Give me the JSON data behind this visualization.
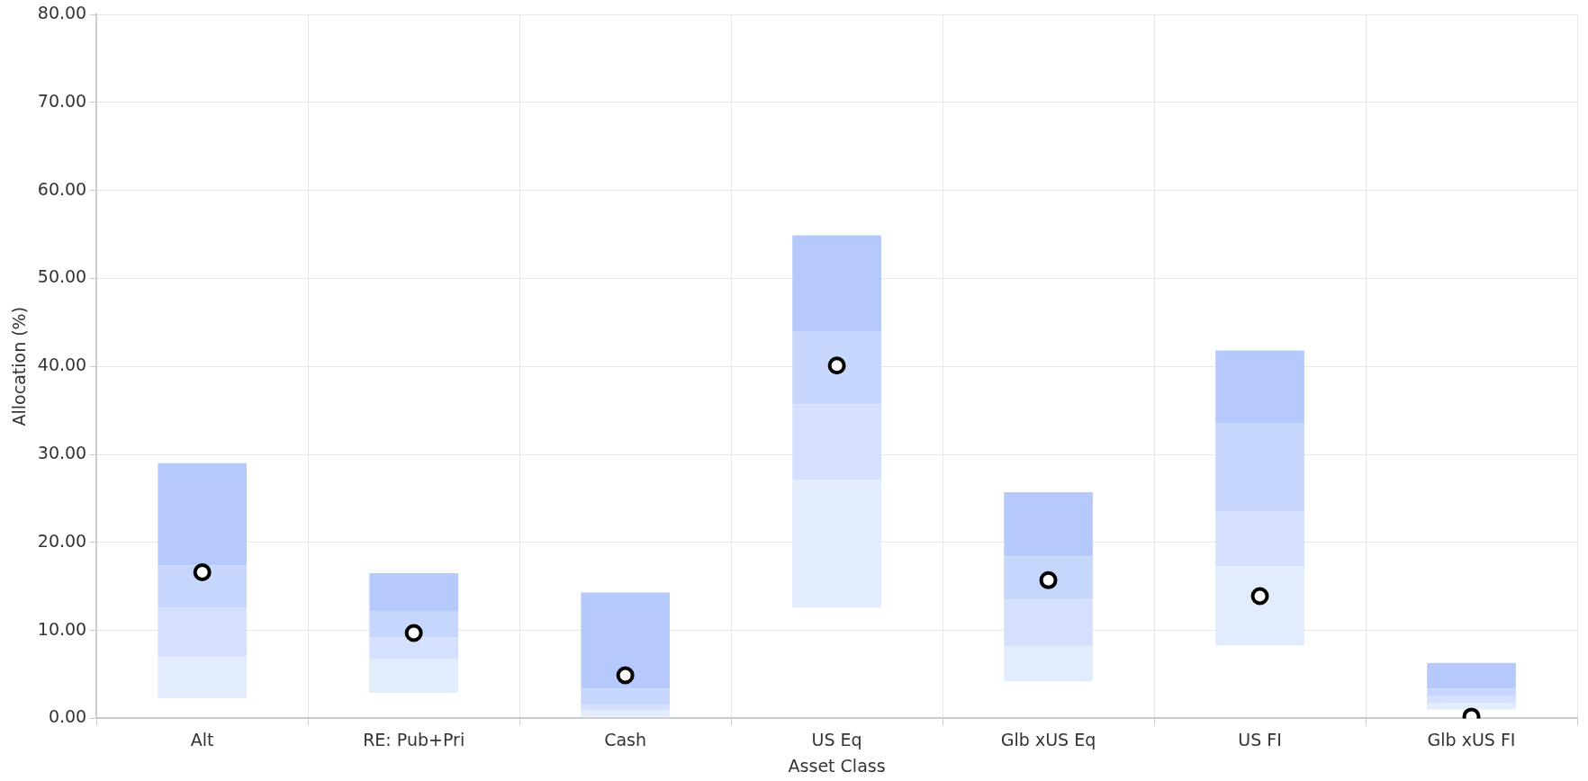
{
  "chart_data": {
    "type": "bar",
    "xlabel": "Asset Class",
    "ylabel": "Allocation (%)",
    "categories": [
      "Alt",
      "RE: Pub+Pri",
      "Cash",
      "US Eq",
      "Glb xUS Eq",
      "US FI",
      "Glb xUS FI"
    ],
    "series": [
      {
        "color": "#e3ecfd",
        "base": [
          2.3,
          2.9,
          0.2,
          12.6,
          4.2,
          8.3,
          1.0
        ],
        "values": [
          4.8,
          3.9,
          0.7,
          14.5,
          4.0,
          9.0,
          0.7
        ]
      },
      {
        "color": "#d4e0fd",
        "base": [
          7.1,
          6.8,
          0.9,
          27.1,
          8.2,
          17.3,
          1.7
        ],
        "values": [
          5.5,
          2.4,
          0.6,
          8.6,
          5.3,
          6.2,
          0.9
        ]
      },
      {
        "color": "#c6d6fc",
        "base": [
          12.6,
          9.2,
          1.5,
          35.7,
          13.5,
          23.5,
          2.6
        ],
        "values": [
          4.8,
          3.0,
          1.9,
          8.3,
          4.9,
          10.0,
          0.8
        ]
      },
      {
        "color": "#b5c9fc",
        "base": [
          17.4,
          12.2,
          3.4,
          44.0,
          18.4,
          33.5,
          3.4
        ],
        "values": [
          11.6,
          4.3,
          10.9,
          10.9,
          7.3,
          8.3,
          2.9
        ]
      },
      {
        "type": "scatter",
        "color": "#000000",
        "marker": "circle",
        "x": [
          "Alt",
          "RE: Pub+Pri",
          "Cash",
          "US Eq",
          "Glb xUS Eq",
          "US FI",
          "Glb xUS FI"
        ],
        "values": [
          16.6,
          9.7,
          4.9,
          40.1,
          15.7,
          13.9,
          0.2
        ]
      }
    ],
    "ylim": [
      0,
      80
    ],
    "yticks": [
      {
        "value": 0,
        "label": "0.00"
      },
      {
        "value": 10,
        "label": "10.00"
      },
      {
        "value": 20,
        "label": "20.00"
      },
      {
        "value": 30,
        "label": "30.00"
      },
      {
        "value": 40,
        "label": "40.00"
      },
      {
        "value": 50,
        "label": "50.00"
      },
      {
        "value": 60,
        "label": "60.00"
      },
      {
        "value": 70,
        "label": "70.00"
      },
      {
        "value": 80,
        "label": "80.00"
      }
    ],
    "grid": true,
    "legend": false
  }
}
